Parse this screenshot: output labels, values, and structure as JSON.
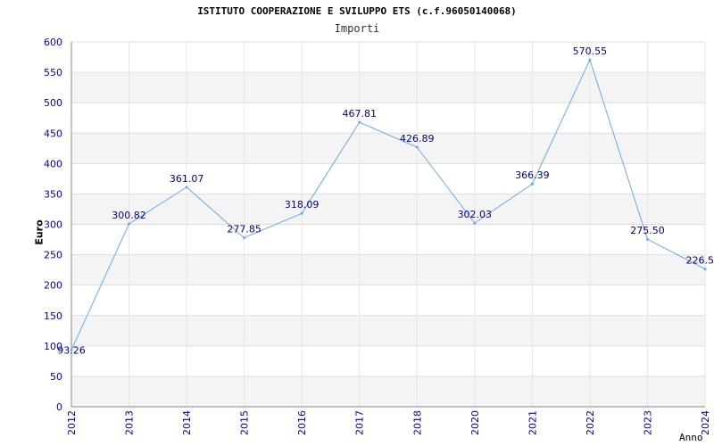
{
  "chart_data": {
    "type": "line",
    "title": "ISTITUTO COOPERAZIONE E SVILUPPO ETS (c.f.96050140068)",
    "subtitle": "Importi",
    "ylabel": "Euro",
    "xlabel": "Anno",
    "ylim": [
      0,
      600
    ],
    "yticks": [
      0,
      50,
      100,
      150,
      200,
      250,
      300,
      350,
      400,
      450,
      500,
      550,
      600
    ],
    "grid": true,
    "line_color": "#66aaee",
    "tick_color": "#0000aa",
    "x": [
      "2012",
      "2013",
      "2014",
      "2015",
      "2016",
      "2017",
      "2018",
      "2020",
      "2021",
      "2022",
      "2023",
      "2024"
    ],
    "values": [
      93.26,
      300.82,
      361.07,
      277.85,
      318.09,
      467.81,
      426.89,
      302.03,
      366.39,
      570.55,
      275.5,
      226.5
    ],
    "labels": [
      "93.26",
      "300.82",
      "361.07",
      "277.85",
      "318.09",
      "467.81",
      "426.89",
      "302.03",
      "366.39",
      "570.55",
      "275.50",
      "226.5"
    ]
  }
}
